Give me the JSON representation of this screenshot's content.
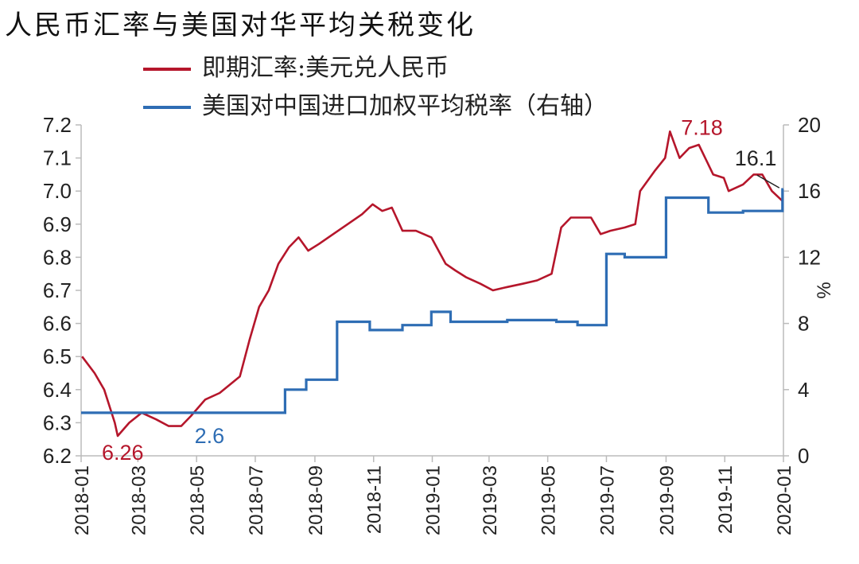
{
  "chart_data": {
    "type": "line",
    "title": "人民币汇率与美国对华平均关税变化",
    "ylabel_right": "%",
    "x_ticks": [
      "2018-01",
      "2018-03",
      "2018-05",
      "2018-07",
      "2018-09",
      "2018-11",
      "2019-01",
      "2019-03",
      "2019-05",
      "2019-07",
      "2019-09",
      "2019-11",
      "2020-01"
    ],
    "ylim_left": [
      6.2,
      7.2
    ],
    "yticks_left": [
      "6.2",
      "6.3",
      "6.4",
      "6.5",
      "6.6",
      "6.7",
      "6.8",
      "6.9",
      "7.0",
      "7.1",
      "7.2"
    ],
    "ylim_right": [
      0,
      20
    ],
    "yticks_right": [
      "0",
      "4",
      "8",
      "12",
      "16",
      "20"
    ],
    "colors": {
      "fx": "#b5162b",
      "tariff": "#2e6db4",
      "annot_dark": "#222222"
    },
    "series": [
      {
        "name": "即期汇率:美元兑人民币",
        "axis": "left",
        "x": [
          "2018-01-02",
          "2018-01-15",
          "2018-01-25",
          "2018-02-05",
          "2018-02-08",
          "2018-02-20",
          "2018-03-05",
          "2018-03-20",
          "2018-04-02",
          "2018-04-15",
          "2018-04-25",
          "2018-05-10",
          "2018-05-25",
          "2018-06-15",
          "2018-06-25",
          "2018-07-05",
          "2018-07-15",
          "2018-07-25",
          "2018-08-05",
          "2018-08-15",
          "2018-08-25",
          "2018-09-05",
          "2018-09-20",
          "2018-10-05",
          "2018-10-20",
          "2018-10-31",
          "2018-11-10",
          "2018-11-20",
          "2018-12-01",
          "2018-12-15",
          "2018-12-31",
          "2019-01-15",
          "2019-01-25",
          "2019-02-05",
          "2019-02-20",
          "2019-03-05",
          "2019-03-20",
          "2019-04-05",
          "2019-04-20",
          "2019-05-05",
          "2019-05-15",
          "2019-05-25",
          "2019-06-15",
          "2019-06-25",
          "2019-07-05",
          "2019-07-20",
          "2019-07-31",
          "2019-08-05",
          "2019-08-20",
          "2019-08-31",
          "2019-09-05",
          "2019-09-15",
          "2019-09-25",
          "2019-10-05",
          "2019-10-20",
          "2019-10-31",
          "2019-11-05",
          "2019-11-20",
          "2019-12-01",
          "2019-12-10",
          "2019-12-20",
          "2019-12-31"
        ],
        "values": [
          6.5,
          6.45,
          6.4,
          6.3,
          6.26,
          6.3,
          6.33,
          6.31,
          6.29,
          6.29,
          6.32,
          6.37,
          6.39,
          6.44,
          6.55,
          6.65,
          6.7,
          6.78,
          6.83,
          6.86,
          6.82,
          6.84,
          6.87,
          6.9,
          6.93,
          6.96,
          6.94,
          6.95,
          6.88,
          6.88,
          6.86,
          6.78,
          6.76,
          6.74,
          6.72,
          6.7,
          6.71,
          6.72,
          6.73,
          6.75,
          6.89,
          6.92,
          6.92,
          6.87,
          6.88,
          6.89,
          6.9,
          7.0,
          7.06,
          7.1,
          7.18,
          7.1,
          7.13,
          7.14,
          7.05,
          7.04,
          7.0,
          7.02,
          7.05,
          7.05,
          7.0,
          6.97
        ]
      },
      {
        "name": "美国对中国进口加权平均税率（右轴）",
        "axis": "right",
        "step": true,
        "x": [
          "2018-01-01",
          "2018-08-01",
          "2018-08-23",
          "2018-09-24",
          "2018-10-28",
          "2018-12-01",
          "2018-12-31",
          "2019-01-20",
          "2019-03-20",
          "2019-04-20",
          "2019-05-10",
          "2019-06-01",
          "2019-07-01",
          "2019-07-20",
          "2019-08-20",
          "2019-09-01",
          "2019-10-15",
          "2019-11-20",
          "2019-12-15",
          "2019-12-31"
        ],
        "values": [
          2.6,
          4.0,
          4.6,
          8.1,
          7.6,
          7.9,
          8.7,
          8.1,
          8.2,
          8.2,
          8.1,
          7.9,
          12.2,
          12.0,
          12.0,
          15.6,
          14.7,
          14.8,
          14.8,
          16.1
        ]
      }
    ],
    "annotations": [
      {
        "text": "7.18",
        "series": "fx",
        "x": "2019-09-05",
        "value": 7.18
      },
      {
        "text": "6.26",
        "series": "fx",
        "x": "2018-02-08",
        "value": 6.26
      },
      {
        "text": "2.6",
        "series": "tariff",
        "x": "2018-06-01",
        "value": 2.6
      },
      {
        "text": "16.1",
        "series": "tariff",
        "x": "2019-12-31",
        "value": 16.1
      }
    ]
  }
}
